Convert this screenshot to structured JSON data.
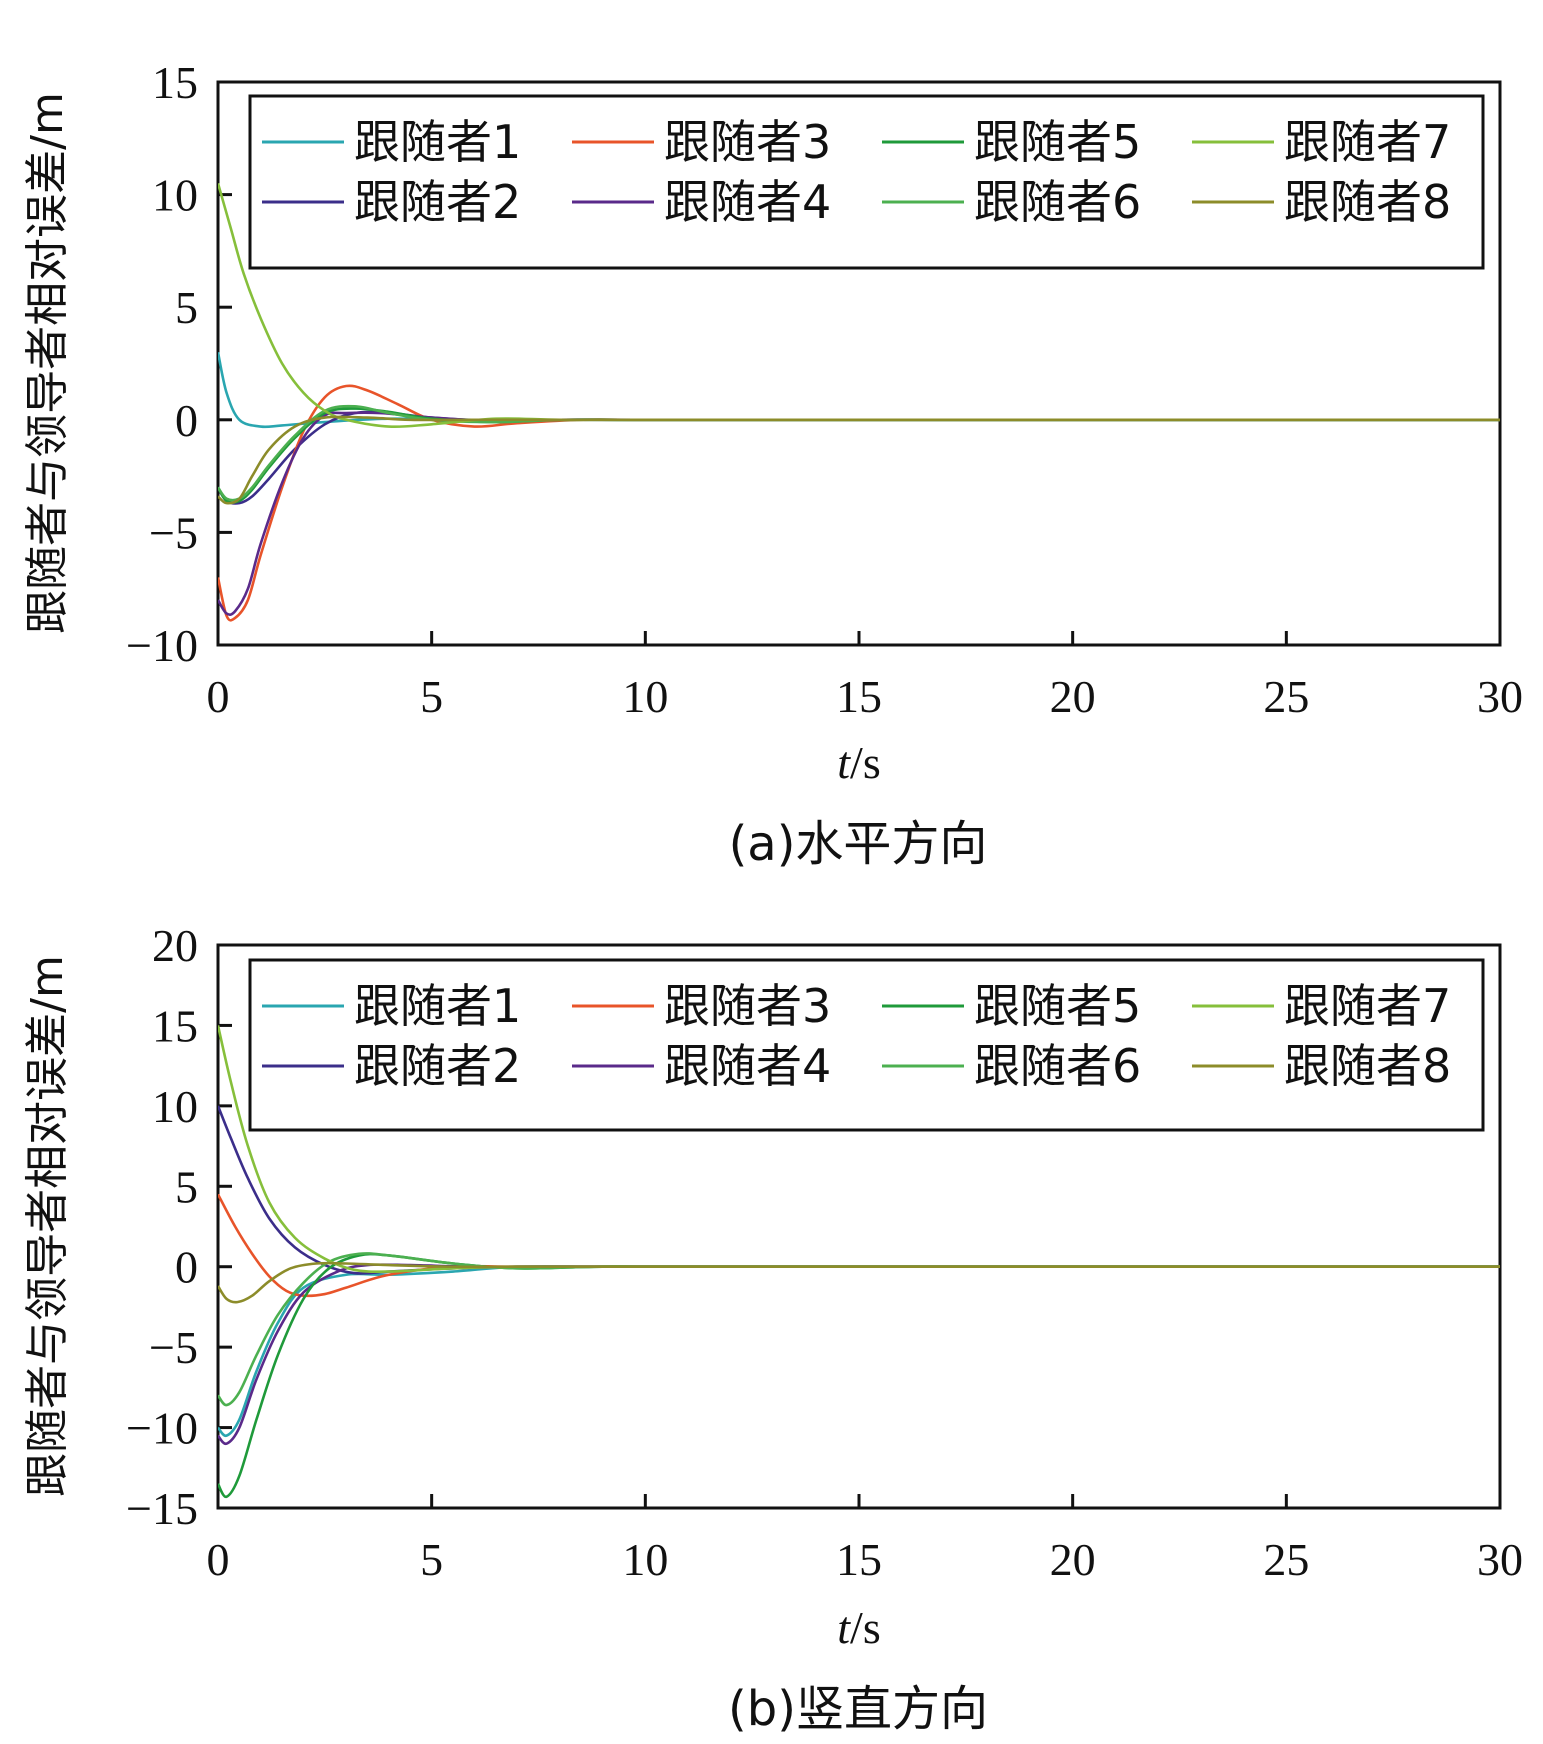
{
  "chart_data": [
    {
      "type": "line",
      "caption": "(a)水平方向",
      "xlabel_italic": "t",
      "xlabel_rest": "/s",
      "ylabel": "跟随者与领导者相对误差/m",
      "xlim": [
        0,
        30
      ],
      "ylim": [
        -10,
        15
      ],
      "xticks": [
        0,
        5,
        10,
        15,
        20,
        25,
        30
      ],
      "yticks": [
        -10,
        -5,
        0,
        5,
        10,
        15
      ],
      "ytick_labels": [
        "−10",
        "−5",
        "0",
        "5",
        "10",
        "15"
      ],
      "grid": false,
      "legend_position": "top",
      "series": [
        {
          "name": "跟随者1",
          "color": "#2aa6b0",
          "x": [
            0,
            0.2,
            0.5,
            1.0,
            1.5,
            2.5,
            4,
            6,
            8,
            10,
            15,
            30
          ],
          "y": [
            3.0,
            1.2,
            0.0,
            -0.3,
            -0.25,
            -0.1,
            0.05,
            0.0,
            0.0,
            0.0,
            0.0,
            0.0
          ]
        },
        {
          "name": "跟随者2",
          "color": "#3b2e8a",
          "x": [
            0,
            0.2,
            0.5,
            0.8,
            1.2,
            1.8,
            2.5,
            3.2,
            4,
            5,
            6.5,
            8,
            10,
            15,
            30
          ],
          "y": [
            -3.0,
            -3.6,
            -3.7,
            -3.4,
            -2.6,
            -1.3,
            -0.2,
            0.3,
            0.3,
            0.1,
            -0.05,
            0.0,
            0.0,
            0.0,
            0.0
          ]
        },
        {
          "name": "跟随者3",
          "color": "#e8542a",
          "x": [
            0,
            0.2,
            0.4,
            0.7,
            1.0,
            1.5,
            2.0,
            2.5,
            3.0,
            3.5,
            4.2,
            5,
            6,
            7,
            8.5,
            10,
            15,
            30
          ],
          "y": [
            -7.0,
            -8.7,
            -8.8,
            -8.0,
            -6.0,
            -3.0,
            -0.5,
            1.0,
            1.5,
            1.3,
            0.7,
            0.0,
            -0.3,
            -0.15,
            0.0,
            0.0,
            0.0,
            0.0
          ]
        },
        {
          "name": "跟随者4",
          "color": "#5a2a8a",
          "x": [
            0,
            0.2,
            0.4,
            0.7,
            1.0,
            1.5,
            2.0,
            2.5,
            3.0,
            3.8,
            5,
            6.5,
            8,
            10,
            15,
            30
          ],
          "y": [
            -8.0,
            -8.6,
            -8.5,
            -7.5,
            -5.5,
            -2.8,
            -0.8,
            0.2,
            0.3,
            0.3,
            0.1,
            -0.05,
            0.0,
            0.0,
            0.0,
            0.0
          ]
        },
        {
          "name": "跟随者5",
          "color": "#1f9a3a",
          "x": [
            0,
            0.2,
            0.5,
            0.8,
            1.2,
            1.8,
            2.5,
            3.2,
            4,
            5,
            6.5,
            8,
            10,
            15,
            30
          ],
          "y": [
            -3.0,
            -3.6,
            -3.6,
            -3.1,
            -2.1,
            -0.8,
            0.3,
            0.5,
            0.35,
            0.05,
            -0.1,
            0.0,
            0.0,
            0.0,
            0.0
          ]
        },
        {
          "name": "跟随者6",
          "color": "#4cb050",
          "x": [
            0,
            0.2,
            0.5,
            0.8,
            1.2,
            1.8,
            2.5,
            3.2,
            4,
            5,
            6.5,
            8,
            10,
            15,
            30
          ],
          "y": [
            -3.0,
            -3.5,
            -3.5,
            -3.0,
            -2.0,
            -0.7,
            0.4,
            0.6,
            0.3,
            0.0,
            -0.1,
            0.0,
            0.0,
            0.0,
            0.0
          ]
        },
        {
          "name": "跟随者7",
          "color": "#86bf3b",
          "x": [
            0,
            0.3,
            0.6,
            1.0,
            1.5,
            2.0,
            2.5,
            3.0,
            4.0,
            5,
            6.5,
            8,
            10,
            15,
            30
          ],
          "y": [
            10.5,
            8.5,
            6.5,
            4.5,
            2.5,
            1.2,
            0.4,
            0.0,
            -0.3,
            -0.2,
            0.05,
            0.0,
            0.0,
            0.0,
            0.0
          ]
        },
        {
          "name": "跟随者8",
          "color": "#8c8c2a",
          "x": [
            0,
            0.2,
            0.5,
            0.8,
            1.2,
            1.8,
            2.5,
            3.5,
            4.5,
            6,
            8,
            10,
            15,
            30
          ],
          "y": [
            -3.4,
            -3.7,
            -3.5,
            -2.5,
            -1.3,
            -0.3,
            0.1,
            0.1,
            0.0,
            0.0,
            0.0,
            0.0,
            0.0,
            0.0
          ]
        }
      ]
    },
    {
      "type": "line",
      "caption": "(b)竖直方向",
      "xlabel_italic": "t",
      "xlabel_rest": "/s",
      "ylabel": "跟随者与领导者相对误差/m",
      "xlim": [
        0,
        30
      ],
      "ylim": [
        -15,
        20
      ],
      "xticks": [
        0,
        5,
        10,
        15,
        20,
        25,
        30
      ],
      "yticks": [
        -15,
        -10,
        -5,
        0,
        5,
        10,
        15,
        20
      ],
      "ytick_labels": [
        "−15",
        "−10",
        "−5",
        "0",
        "5",
        "10",
        "15",
        "20"
      ],
      "grid": false,
      "legend_position": "top",
      "series": [
        {
          "name": "跟随者1",
          "color": "#2aa6b0",
          "x": [
            0,
            0.2,
            0.5,
            0.9,
            1.4,
            2.0,
            3.0,
            4.0,
            5.5,
            7,
            9,
            12,
            30
          ],
          "y": [
            -10.0,
            -10.5,
            -9.5,
            -6.5,
            -3.5,
            -1.3,
            -0.5,
            -0.5,
            -0.3,
            0.0,
            0.0,
            0.0,
            0.0
          ]
        },
        {
          "name": "跟随者2",
          "color": "#3b2e8a",
          "x": [
            0,
            0.3,
            0.7,
            1.2,
            1.8,
            2.5,
            3.2,
            4.0,
            5.5,
            7,
            9,
            12,
            30
          ],
          "y": [
            10.0,
            8.0,
            5.5,
            3.0,
            1.2,
            0.1,
            -0.4,
            -0.3,
            -0.1,
            0.0,
            0.0,
            0.0,
            0.0
          ]
        },
        {
          "name": "跟随者3",
          "color": "#e8542a",
          "x": [
            0,
            0.4,
            0.8,
            1.2,
            1.6,
            2.0,
            2.5,
            3.0,
            4.0,
            5.5,
            7,
            9,
            12,
            30
          ],
          "y": [
            4.5,
            2.5,
            0.8,
            -0.6,
            -1.5,
            -1.8,
            -1.7,
            -1.3,
            -0.5,
            0.0,
            0.0,
            0.0,
            0.0,
            0.0
          ]
        },
        {
          "name": "跟随者4",
          "color": "#5a2a8a",
          "x": [
            0,
            0.2,
            0.5,
            0.9,
            1.4,
            2.0,
            2.8,
            3.5,
            4.5,
            6,
            8,
            12,
            30
          ],
          "y": [
            -10.5,
            -11.0,
            -10.0,
            -7.0,
            -4.0,
            -1.6,
            -0.3,
            0.1,
            0.1,
            0.0,
            0.0,
            0.0,
            0.0
          ]
        },
        {
          "name": "跟随者5",
          "color": "#1f9a3a",
          "x": [
            0,
            0.2,
            0.5,
            0.9,
            1.4,
            2.0,
            2.6,
            3.3,
            4.0,
            5.5,
            7,
            9,
            12,
            30
          ],
          "y": [
            -13.5,
            -14.3,
            -13.0,
            -9.5,
            -5.5,
            -2.0,
            -0.1,
            0.7,
            0.7,
            0.2,
            -0.1,
            0.0,
            0.0,
            0.0
          ]
        },
        {
          "name": "跟随者6",
          "color": "#4cb050",
          "x": [
            0,
            0.2,
            0.5,
            0.9,
            1.4,
            2.0,
            2.6,
            3.3,
            4.0,
            5.5,
            7,
            9,
            12,
            30
          ],
          "y": [
            -8.0,
            -8.6,
            -7.8,
            -5.5,
            -3.0,
            -1.0,
            0.3,
            0.8,
            0.7,
            0.2,
            -0.1,
            0.0,
            0.0,
            0.0
          ]
        },
        {
          "name": "跟随者7",
          "color": "#86bf3b",
          "x": [
            0,
            0.3,
            0.7,
            1.2,
            1.8,
            2.5,
            3.2,
            4.0,
            5.5,
            7,
            9,
            12,
            30
          ],
          "y": [
            15.0,
            11.5,
            7.5,
            4.0,
            1.8,
            0.5,
            -0.2,
            -0.3,
            -0.1,
            0.0,
            0.0,
            0.0,
            0.0
          ]
        },
        {
          "name": "跟随者8",
          "color": "#8c8c2a",
          "x": [
            0,
            0.2,
            0.45,
            0.8,
            1.2,
            1.7,
            2.3,
            3.0,
            4.0,
            5.5,
            7,
            9,
            12,
            30
          ],
          "y": [
            -1.2,
            -2.0,
            -2.2,
            -1.8,
            -0.9,
            -0.1,
            0.2,
            0.2,
            0.1,
            0.0,
            0.0,
            0.0,
            0.0,
            0.0
          ]
        }
      ]
    }
  ]
}
